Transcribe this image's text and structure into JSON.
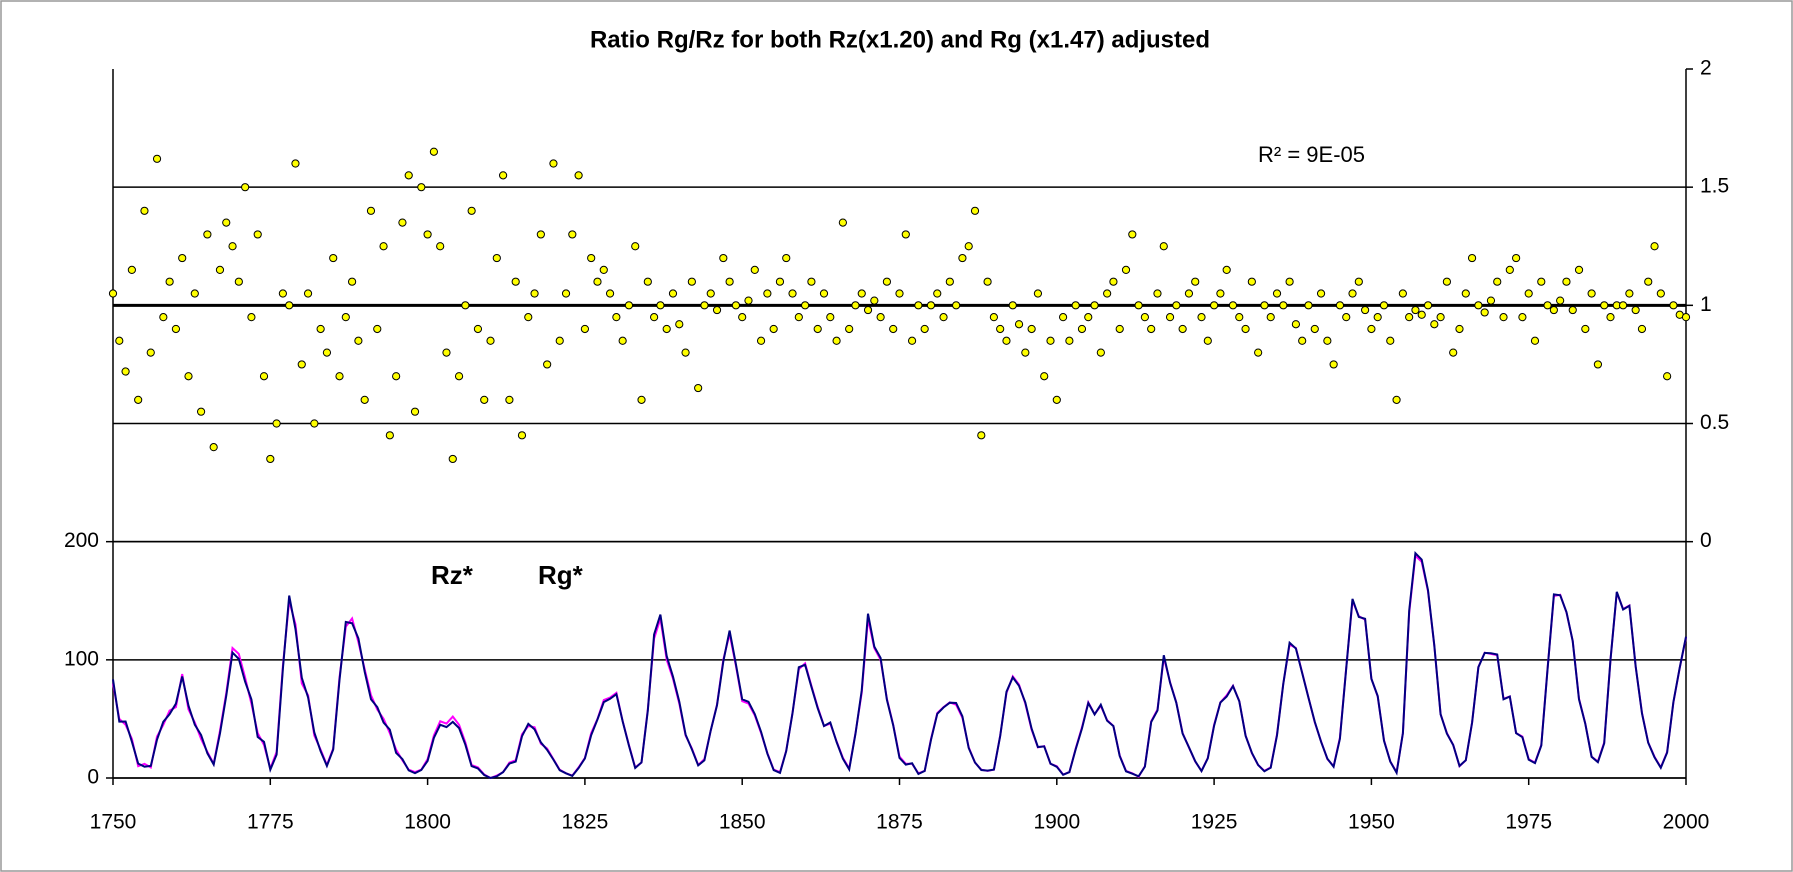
{
  "chart_data": {
    "type": "line",
    "title": "Ratio Rg/Rz for both Rz(x1.20) and Rg (x1.47) adjusted",
    "annotation": "R² = 9E-05",
    "xlim": [
      1750,
      2000
    ],
    "xticks": [
      1750,
      1775,
      1800,
      1825,
      1850,
      1875,
      1900,
      1925,
      1950,
      1975,
      2000
    ],
    "ylim": [
      0,
      600
    ],
    "yticks": [
      0,
      100,
      200
    ],
    "y2lim": [
      -1,
      2
    ],
    "y2ticks": [
      0,
      0.5,
      1,
      1.5,
      2
    ],
    "grid": true,
    "x": [
      1750,
      1751,
      1752,
      1753,
      1754,
      1755,
      1756,
      1757,
      1758,
      1759,
      1760,
      1761,
      1762,
      1763,
      1764,
      1765,
      1766,
      1767,
      1768,
      1769,
      1770,
      1771,
      1772,
      1773,
      1774,
      1775,
      1776,
      1777,
      1778,
      1779,
      1780,
      1781,
      1782,
      1783,
      1784,
      1785,
      1786,
      1787,
      1788,
      1789,
      1790,
      1791,
      1792,
      1793,
      1794,
      1795,
      1796,
      1797,
      1798,
      1799,
      1800,
      1801,
      1802,
      1803,
      1804,
      1805,
      1806,
      1807,
      1808,
      1809,
      1810,
      1811,
      1812,
      1813,
      1814,
      1815,
      1816,
      1817,
      1818,
      1819,
      1820,
      1821,
      1822,
      1823,
      1824,
      1825,
      1826,
      1827,
      1828,
      1829,
      1830,
      1831,
      1832,
      1833,
      1834,
      1835,
      1836,
      1837,
      1838,
      1839,
      1840,
      1841,
      1842,
      1843,
      1844,
      1845,
      1846,
      1847,
      1848,
      1849,
      1850,
      1851,
      1852,
      1853,
      1854,
      1855,
      1856,
      1857,
      1858,
      1859,
      1860,
      1861,
      1862,
      1863,
      1864,
      1865,
      1866,
      1867,
      1868,
      1869,
      1870,
      1871,
      1872,
      1873,
      1874,
      1875,
      1876,
      1877,
      1878,
      1879,
      1880,
      1881,
      1882,
      1883,
      1884,
      1885,
      1886,
      1887,
      1888,
      1889,
      1890,
      1891,
      1892,
      1893,
      1894,
      1895,
      1896,
      1897,
      1898,
      1899,
      1900,
      1901,
      1902,
      1903,
      1904,
      1905,
      1906,
      1907,
      1908,
      1909,
      1910,
      1911,
      1912,
      1913,
      1914,
      1915,
      1916,
      1917,
      1918,
      1919,
      1920,
      1921,
      1922,
      1923,
      1924,
      1925,
      1926,
      1927,
      1928,
      1929,
      1930,
      1931,
      1932,
      1933,
      1934,
      1935,
      1936,
      1937,
      1938,
      1939,
      1940,
      1941,
      1942,
      1943,
      1944,
      1945,
      1946,
      1947,
      1948,
      1949,
      1950,
      1951,
      1952,
      1953,
      1954,
      1955,
      1956,
      1957,
      1958,
      1959,
      1960,
      1961,
      1962,
      1963,
      1964,
      1965,
      1966,
      1967,
      1968,
      1969,
      1970,
      1971,
      1972,
      1973,
      1974,
      1975,
      1976,
      1977,
      1978,
      1979,
      1980,
      1981,
      1982,
      1983,
      1984,
      1985,
      1986,
      1987,
      1988,
      1989,
      1990,
      1991,
      1992,
      1993,
      1994,
      1995,
      1996,
      1997,
      1998,
      1999,
      2000
    ],
    "series": [
      {
        "name": "Rg*",
        "color": "#ff00ff",
        "values": [
          80,
          50,
          45,
          33,
          10,
          12,
          9,
          35,
          45,
          57,
          60,
          88,
          58,
          47,
          33,
          22,
          12,
          40,
          72,
          110,
          105,
          85,
          63,
          38,
          28,
          8,
          22,
          95,
          150,
          130,
          80,
          70,
          36,
          24,
          11,
          25,
          85,
          128,
          135,
          115,
          92,
          70,
          58,
          50,
          38,
          24,
          15,
          7,
          5,
          7,
          16,
          36,
          48,
          46,
          52,
          45,
          30,
          11,
          9,
          3,
          0,
          2,
          5,
          13,
          15,
          37,
          44,
          43,
          29,
          25,
          16,
          7,
          4,
          2,
          9,
          17,
          38,
          50,
          66,
          68,
          72,
          48,
          28,
          9,
          13,
          58,
          118,
          135,
          100,
          84,
          63,
          36,
          25,
          11,
          16,
          40,
          62,
          100,
          122,
          95,
          65,
          63,
          53,
          38,
          21,
          7,
          5,
          23,
          55,
          92,
          97,
          78,
          60,
          44,
          46,
          31,
          17,
          8,
          38,
          72,
          135,
          110,
          100,
          67,
          45,
          18,
          12,
          12,
          4,
          6,
          33,
          55,
          60,
          64,
          62,
          51,
          26,
          13,
          7,
          6,
          7,
          36,
          72,
          86,
          79,
          63,
          41,
          26,
          27,
          12,
          10,
          3,
          5,
          25,
          43,
          64,
          54,
          61,
          49,
          44,
          19,
          6,
          4,
          1,
          10,
          48,
          58,
          102,
          81,
          64,
          38,
          26,
          14,
          6,
          17,
          45,
          64,
          70,
          78,
          65,
          36,
          21,
          11,
          6,
          9,
          37,
          80,
          113,
          110,
          89,
          68,
          47,
          31,
          16,
          10,
          34,
          93,
          150,
          137,
          134,
          84,
          69,
          32,
          14,
          5,
          38,
          140,
          188,
          183,
          158,
          112,
          54,
          38,
          28,
          10,
          15,
          47,
          94,
          106,
          105,
          104,
          67,
          69,
          38,
          35,
          16,
          13,
          28,
          93,
          154,
          155,
          140,
          116,
          67,
          46,
          18,
          14,
          30,
          100,
          157,
          143,
          146,
          94,
          55,
          30,
          18,
          9,
          22,
          64,
          93,
          119
        ]
      },
      {
        "name": "Rz*",
        "color": "#000080",
        "values": [
          83.4,
          47.7,
          47.8,
          30.7,
          12.2,
          9.6,
          10.2,
          32.4,
          47.6,
          54.0,
          62.9,
          85.9,
          61.2,
          45.1,
          36.4,
          20.9,
          11.4,
          37.8,
          69.8,
          106.1,
          100.8,
          81.6,
          66.5,
          34.8,
          30.6,
          7.0,
          19.8,
          92.5,
          154.4,
          125.9,
          84.8,
          68.1,
          38.5,
          22.8,
          10.2,
          24.1,
          82.9,
          132.0,
          130.9,
          118.1,
          89.9,
          66.6,
          60.0,
          46.9,
          41.0,
          21.3,
          16.0,
          6.4,
          4.1,
          6.8,
          14.5,
          34.0,
          45.0,
          43.1,
          47.5,
          42.2,
          28.1,
          10.1,
          8.1,
          2.5,
          0.0,
          1.4,
          5.0,
          12.2,
          13.9,
          35.4,
          45.8,
          41.1,
          30.1,
          23.9,
          15.6,
          6.6,
          4.0,
          1.8,
          8.5,
          16.6,
          36.3,
          49.6,
          64.2,
          67.0,
          70.9,
          47.8,
          27.5,
          8.5,
          13.2,
          56.9,
          121.5,
          138.3,
          103.2,
          85.7,
          64.6,
          36.7,
          24.2,
          10.7,
          15.0,
          40.1,
          61.5,
          98.5,
          124.7,
          96.3,
          66.6,
          64.5,
          54.1,
          39.0,
          20.6,
          6.7,
          4.3,
          22.7,
          54.8,
          93.8,
          95.8,
          77.2,
          59.1,
          44.0,
          47.0,
          30.5,
          16.3,
          7.3,
          37.6,
          74.0,
          139.0,
          111.2,
          101.6,
          66.2,
          44.7,
          17.0,
          11.3,
          12.4,
          3.4,
          6.0,
          32.3,
          54.3,
          59.7,
          63.7,
          63.5,
          52.2,
          25.4,
          13.1,
          6.8,
          6.3,
          7.1,
          35.6,
          73.0,
          85.1,
          78.0,
          64.0,
          41.8,
          26.2,
          26.7,
          12.1,
          9.5,
          2.7,
          5.0,
          24.4,
          42.0,
          63.5,
          53.8,
          62.0,
          48.5,
          43.9,
          18.6,
          5.7,
          3.6,
          1.4,
          9.6,
          47.4,
          57.1,
          103.9,
          80.6,
          63.6,
          37.6,
          26.1,
          14.2,
          5.8,
          16.7,
          44.3,
          63.9,
          69.0,
          77.8,
          64.9,
          35.7,
          21.2,
          11.1,
          5.7,
          8.7,
          36.1,
          79.7,
          114.4,
          109.6,
          88.8,
          67.8,
          47.5,
          30.6,
          16.3,
          9.6,
          33.2,
          92.6,
          151.6,
          136.3,
          134.7,
          83.9,
          69.4,
          31.5,
          13.9,
          4.4,
          38.0,
          141.7,
          190.2,
          184.8,
          159.0,
          112.3,
          53.9,
          37.6,
          27.9,
          10.2,
          15.1,
          47.0,
          93.8,
          105.9,
          105.5,
          104.5,
          66.6,
          68.9,
          38.0,
          34.5,
          15.5,
          12.6,
          27.5,
          92.5,
          155.4,
          154.6,
          140.4,
          115.9,
          66.6,
          45.9,
          17.9,
          13.4,
          29.4,
          100.2,
          157.6,
          142.6,
          145.7,
          94.3,
          54.6,
          29.9,
          17.5,
          8.6,
          21.5,
          64.3,
          93.3,
          119.6
        ]
      }
    ],
    "scatter": {
      "color": "#ffff00",
      "axis": "y2",
      "values": [
        1.05,
        0.85,
        0.72,
        1.15,
        0.6,
        1.4,
        0.8,
        1.62,
        0.95,
        1.1,
        0.9,
        1.2,
        0.7,
        1.05,
        0.55,
        1.3,
        0.4,
        1.15,
        1.35,
        1.25,
        1.1,
        1.5,
        0.95,
        1.3,
        0.7,
        0.35,
        0.5,
        1.05,
        1.0,
        1.6,
        0.75,
        1.05,
        0.5,
        0.9,
        0.8,
        1.2,
        0.7,
        0.95,
        1.1,
        0.85,
        0.6,
        1.4,
        0.9,
        1.25,
        0.45,
        0.7,
        1.35,
        1.55,
        0.55,
        1.5,
        1.3,
        1.65,
        1.25,
        0.8,
        0.35,
        0.7,
        1.0,
        1.4,
        0.9,
        0.6,
        0.85,
        1.2,
        1.55,
        0.6,
        1.1,
        0.45,
        0.95,
        1.05,
        1.3,
        0.75,
        1.6,
        0.85,
        1.05,
        1.3,
        1.55,
        0.9,
        1.2,
        1.1,
        1.15,
        1.05,
        0.95,
        0.85,
        1.0,
        1.25,
        0.6,
        1.1,
        0.95,
        1.0,
        0.9,
        1.05,
        0.92,
        0.8,
        1.1,
        0.65,
        1.0,
        1.05,
        0.98,
        1.2,
        1.1,
        1.0,
        0.95,
        1.02,
        1.15,
        0.85,
        1.05,
        0.9,
        1.1,
        1.2,
        1.05,
        0.95,
        1.0,
        1.1,
        0.9,
        1.05,
        0.95,
        0.85,
        1.35,
        0.9,
        1.0,
        1.05,
        0.98,
        1.02,
        0.95,
        1.1,
        0.9,
        1.05,
        1.3,
        0.85,
        1.0,
        0.9,
        1.0,
        1.05,
        0.95,
        1.1,
        1.0,
        1.2,
        1.25,
        1.4,
        0.45,
        1.1,
        0.95,
        0.9,
        0.85,
        1.0,
        0.92,
        0.8,
        0.9,
        1.05,
        0.7,
        0.85,
        0.6,
        0.95,
        0.85,
        1.0,
        0.9,
        0.95,
        1.0,
        0.8,
        1.05,
        1.1,
        0.9,
        1.15,
        1.3,
        1.0,
        0.95,
        0.9,
        1.05,
        1.25,
        0.95,
        1.0,
        0.9,
        1.05,
        1.1,
        0.95,
        0.85,
        1.0,
        1.05,
        1.15,
        1.0,
        0.95,
        0.9,
        1.1,
        0.8,
        1.0,
        0.95,
        1.05,
        1.0,
        1.1,
        0.92,
        0.85,
        1.0,
        0.9,
        1.05,
        0.85,
        0.75,
        1.0,
        0.95,
        1.05,
        1.1,
        0.98,
        0.9,
        0.95,
        1.0,
        0.85,
        0.6,
        1.05,
        0.95,
        0.98,
        0.96,
        1.0,
        0.92,
        0.95,
        1.1,
        0.8,
        0.9,
        1.05,
        1.2,
        1.0,
        0.97,
        1.02,
        1.1,
        0.95,
        1.15,
        1.2,
        0.95,
        1.05,
        0.85,
        1.1,
        1.0,
        0.98,
        1.02,
        1.1,
        0.98,
        1.15,
        0.9,
        1.05,
        0.75,
        1.0,
        0.95,
        1.0,
        1.0,
        1.05,
        0.98,
        0.9,
        1.1,
        1.25,
        1.05,
        0.7,
        1.0,
        0.96,
        0.95
      ]
    },
    "trendline": {
      "color": "#000000",
      "axis": "y2",
      "x": [
        1750,
        2000
      ],
      "values": [
        1,
        1
      ]
    }
  }
}
